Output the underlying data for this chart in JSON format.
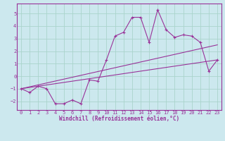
{
  "xlabel": "Windchill (Refroidissement éolien,°C)",
  "bg_color": "#cce8ee",
  "grid_color": "#aad4cc",
  "line_color": "#993399",
  "x_data": [
    0,
    1,
    2,
    3,
    4,
    5,
    6,
    7,
    8,
    9,
    10,
    11,
    12,
    13,
    14,
    15,
    16,
    17,
    18,
    19,
    20,
    21,
    22,
    23
  ],
  "y_data": [
    -1.0,
    -1.3,
    -0.8,
    -1.0,
    -2.2,
    -2.2,
    -1.9,
    -2.2,
    -0.3,
    -0.4,
    1.3,
    3.2,
    3.5,
    4.7,
    4.7,
    2.7,
    5.3,
    3.7,
    3.1,
    3.3,
    3.2,
    2.7,
    0.4,
    1.3
  ],
  "trend1_x": [
    0,
    23
  ],
  "trend1_y": [
    -1.0,
    2.5
  ],
  "trend2_x": [
    0,
    23
  ],
  "trend2_y": [
    -1.0,
    1.3
  ],
  "xlim": [
    -0.5,
    23.5
  ],
  "ylim": [
    -2.7,
    5.8
  ],
  "yticks": [
    -2,
    -1,
    0,
    1,
    2,
    3,
    4,
    5
  ],
  "xticks": [
    0,
    1,
    2,
    3,
    4,
    5,
    6,
    7,
    8,
    9,
    10,
    11,
    12,
    13,
    14,
    15,
    16,
    17,
    18,
    19,
    20,
    21,
    22,
    23
  ],
  "tick_fontsize": 5.0,
  "xlabel_fontsize": 5.5
}
